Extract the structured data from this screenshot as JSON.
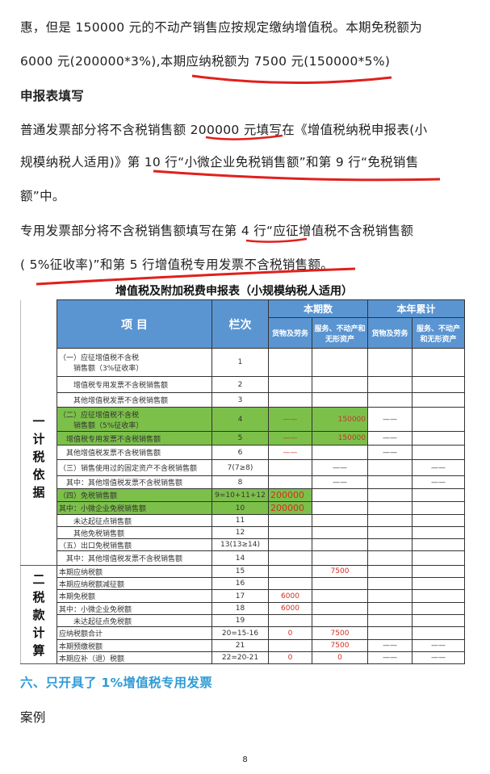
{
  "paragraphs": [
    "惠，但是 150000 元的不动产销售应按规定缴纳增值税。本期免税额为",
    "6000 元(200000*3%),本期应纳税额为 7500 元(150000*5%)",
    "申报表填写",
    "普通发票部分将不含税销售额 200000 元填写在《增值税纳税申报表(小",
    "规模纳税人适用)》第 10 行“小微企业免税销售额”和第 9 行“免税销售",
    "额”中。",
    "专用发票部分将不含税销售额填写在第 4 行“应征增值税不含税销售额",
    "( 5%征收率)”和第 5 行增值税专用发票不含税销售额。"
  ],
  "table": {
    "title": "增值税及附加税费申报表（小规模纳税人适用）",
    "headers": {
      "item": "项  目",
      "col": "栏次",
      "current": "本期数",
      "ytd": "本年累计",
      "goods": "货物及劳务",
      "services": "服务、不动产和无形资产"
    },
    "sections": [
      "一计税依据",
      "二税款计算"
    ],
    "rows": [
      {
        "item": "（一）应征增值税不含税\n　　销售额（3%征收率）",
        "col": "1",
        "v": [
          "",
          "",
          "",
          ""
        ]
      },
      {
        "item": "　　增值税专用发票不含税销售额",
        "col": "2",
        "v": [
          "",
          "",
          "",
          ""
        ]
      },
      {
        "item": "　　其他增值税发票不含税销售额",
        "col": "3",
        "v": [
          "",
          "",
          "",
          ""
        ]
      },
      {
        "item": "（二）应征增值税不含税\n　　销售额（5%征收率）",
        "col": "4",
        "v": [
          "——",
          "150000",
          "——",
          ""
        ],
        "green": true
      },
      {
        "item": "　增值税专用发票不含税销售额",
        "col": "5",
        "v": [
          "——",
          "150000",
          "——",
          ""
        ],
        "green": true
      },
      {
        "item": "　其他增值税发票不含税销售额",
        "col": "6",
        "v": [
          "——",
          "",
          "——",
          ""
        ]
      },
      {
        "item": "（三）销售使用过的固定资产不含税销售额",
        "col": "7(7≥8)",
        "v": [
          "",
          "——",
          "",
          "——"
        ]
      },
      {
        "item": "　其中：其他增值税发票不含税销售额",
        "col": "8",
        "v": [
          "",
          "——",
          "",
          "——"
        ]
      },
      {
        "item": "（四）免税销售额",
        "col": "9=10+11+12",
        "v": [
          "200000",
          "",
          "",
          ""
        ],
        "green": true
      },
      {
        "item": "其中：小微企业免税销售额",
        "col": "10",
        "v": [
          "200000",
          "",
          "",
          ""
        ],
        "green": true
      },
      {
        "item": "　　未达起征点销售额",
        "col": "11",
        "v": [
          "",
          "",
          "",
          ""
        ]
      },
      {
        "item": "　　其他免税销售额",
        "col": "12",
        "v": [
          "",
          "",
          "",
          ""
        ]
      },
      {
        "item": "（五）出口免税销售额",
        "col": "13(13≥14)",
        "v": [
          "",
          "",
          "",
          ""
        ]
      },
      {
        "item": "　其中：其他增值税发票不含税销售额",
        "col": "14",
        "v": [
          "",
          "",
          "",
          ""
        ]
      },
      {
        "item": "本期应纳税额",
        "col": "15",
        "v": [
          "",
          "7500",
          "",
          ""
        ]
      },
      {
        "item": "本期应纳税额减征额",
        "col": "16",
        "v": [
          "",
          "",
          "",
          ""
        ]
      },
      {
        "item": "本期免税额",
        "col": "17",
        "v": [
          "6000",
          "",
          "",
          ""
        ]
      },
      {
        "item": "其中：小微企业免税额",
        "col": "18",
        "v": [
          "6000",
          "",
          "",
          ""
        ]
      },
      {
        "item": "　　未达起征点免税额",
        "col": "19",
        "v": [
          "",
          "",
          "",
          ""
        ]
      },
      {
        "item": "应纳税额合计",
        "col": "20=15-16",
        "v": [
          "0",
          "7500",
          "",
          ""
        ]
      },
      {
        "item": "本期预缴税额",
        "col": "21",
        "v": [
          "",
          "7500",
          "——",
          "——"
        ]
      },
      {
        "item": "本期应补（退）税额",
        "col": "22=20-21",
        "v": [
          "0",
          "0",
          "——",
          "——"
        ]
      }
    ]
  },
  "section_heading": "六、只开具了 1%增值税专用发票",
  "case_label": "案例",
  "page_number": "8",
  "colors": {
    "accent": "#2e9bd6",
    "header": "#5a95d2",
    "highlight": "#7cc04a",
    "annotation": "#e0201c"
  }
}
